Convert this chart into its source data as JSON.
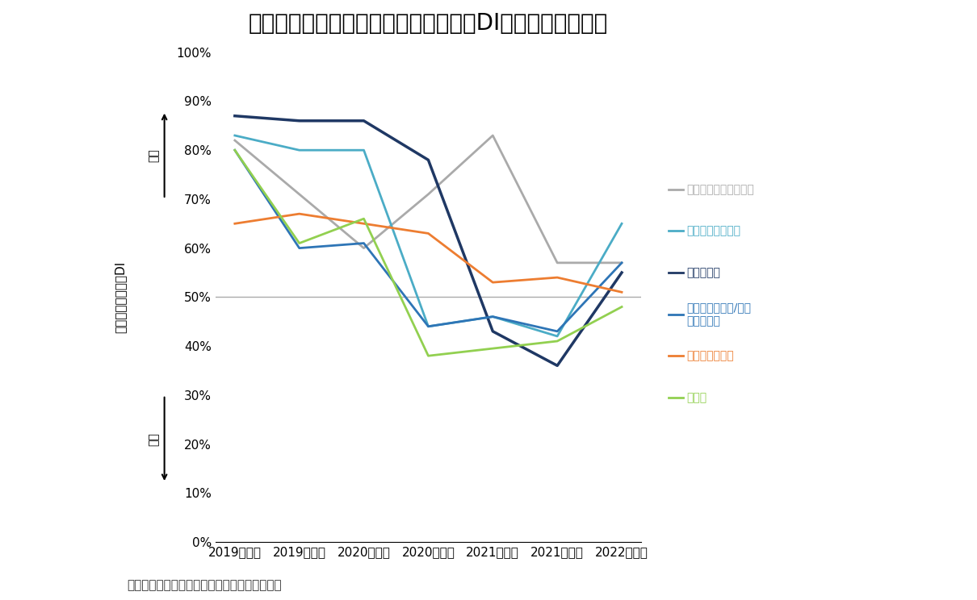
{
  "title": "図表４：主要業種のオフィス拡張移転DIの推移（東京圏）",
  "source": "（出所）三幸エステート・ニッセイ基礎研究所",
  "x_labels": [
    "2019年上期",
    "2019年下期",
    "2020年上期",
    "2020年下期",
    "2021年上期",
    "2021年下期",
    "2022年上期"
  ],
  "ylim": [
    0,
    100
  ],
  "yticks": [
    0,
    10,
    20,
    30,
    40,
    50,
    60,
    70,
    80,
    90,
    100
  ],
  "reference_line": 50,
  "series": [
    {
      "name": "不動産業・物品賃貸業",
      "color": "#aaaaaa",
      "linewidth": 2.0,
      "fontweight": "normal",
      "values": [
        82,
        71,
        60,
        71,
        83,
        57,
        57
      ]
    },
    {
      "name": "その他サービス業",
      "color": "#4bacc6",
      "linewidth": 2.0,
      "fontweight": "normal",
      "values": [
        83,
        80,
        80,
        44,
        46,
        42,
        65
      ]
    },
    {
      "name": "情報通信業",
      "color": "#1f3864",
      "linewidth": 2.5,
      "fontweight": "bold",
      "values": [
        87,
        86,
        86,
        78,
        43,
        36,
        55
      ]
    },
    {
      "name": "学術研究・専門/技術\nサービス業",
      "color": "#2e75b6",
      "linewidth": 2.0,
      "fontweight": "normal",
      "values": [
        80,
        60,
        61,
        44,
        46,
        43,
        57
      ]
    },
    {
      "name": "卸売業・小売業",
      "color": "#ed7d31",
      "linewidth": 2.0,
      "fontweight": "normal",
      "values": [
        65,
        67,
        65,
        63,
        53,
        54,
        51
      ]
    },
    {
      "name": "製造業",
      "color": "#92d050",
      "linewidth": 2.0,
      "fontweight": "normal",
      "values": [
        80,
        61,
        66,
        38,
        null,
        41,
        48
      ]
    }
  ],
  "background_color": "#ffffff",
  "title_fontsize": 20,
  "tick_fontsize": 11,
  "label_fontsize": 11,
  "legend_fontsize": 10,
  "legend_labels": [
    {
      "text": "不動産業・物品賃貸業",
      "color": "#aaaaaa",
      "weight": "normal"
    },
    {
      "text": "その他サービス業",
      "color": "#4bacc6",
      "weight": "normal"
    },
    {
      "text": "情報通信業",
      "color": "#1f3864",
      "weight": "bold"
    },
    {
      "text": "学術研究・専門/技術\nサービス業",
      "color": "#2e75b6",
      "weight": "normal"
    },
    {
      "text": "卸売業・小売業",
      "color": "#ed7d31",
      "weight": "normal"
    },
    {
      "text": "製造業",
      "color": "#92d050",
      "weight": "normal"
    }
  ]
}
